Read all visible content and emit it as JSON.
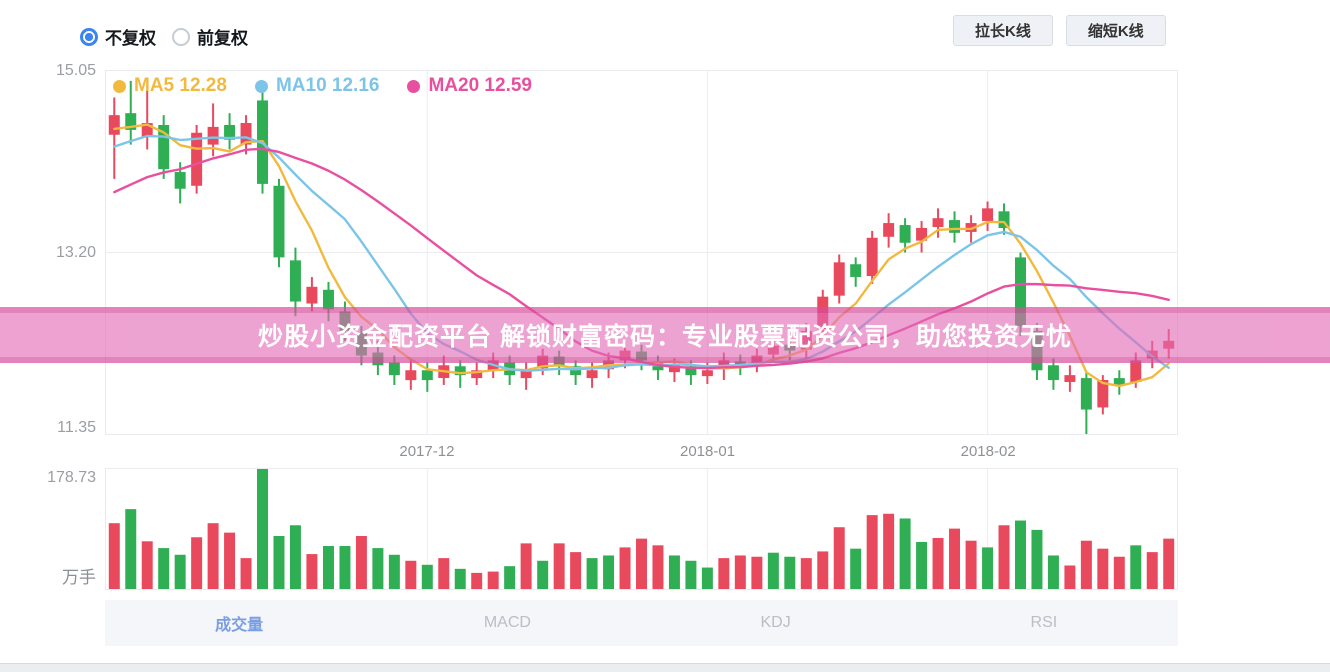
{
  "header": {
    "radios": [
      {
        "label": "不复权",
        "checked": true
      },
      {
        "label": "前复权",
        "checked": false
      }
    ],
    "buttons": [
      {
        "label": "拉长K线"
      },
      {
        "label": "缩短K线"
      }
    ]
  },
  "banner": {
    "text": "炒股小资金配资平台 解锁财富密码：专业股票配资公司，助您投资无忧",
    "text_color": "#ffffff",
    "band_color": "#e26ab6"
  },
  "tabs": [
    {
      "label": "成交量",
      "active": true
    },
    {
      "label": "MACD",
      "active": false
    },
    {
      "label": "KDJ",
      "active": false
    },
    {
      "label": "RSI",
      "active": false
    }
  ],
  "chart_data": {
    "type": "candlestick",
    "title": "",
    "legend": [
      {
        "label": "MA5 12.28",
        "color": "#f2b93f"
      },
      {
        "label": "MA10 12.16",
        "color": "#7cc5e8"
      },
      {
        "label": "MA20 12.59",
        "color": "#e8509f"
      }
    ],
    "y_axis": {
      "labels": [
        "15.05",
        "13.20",
        "11.35"
      ],
      "values": [
        15.05,
        13.2,
        11.35
      ],
      "min": 11.35,
      "max": 15.05
    },
    "x_axis": {
      "labels": [
        "2017-12",
        "2018-01",
        "2018-02"
      ],
      "tick_indices": [
        19,
        36,
        53
      ]
    },
    "volume_axis": {
      "max": 178.73,
      "max_label": "178.73",
      "unit_label": "万手"
    },
    "colors": {
      "up": "#e9495d",
      "down": "#2fae54",
      "ma5": "#f2b93f",
      "ma10": "#7cc5e8",
      "ma20": "#e8509f",
      "grid": "#ececf0"
    },
    "candles": [
      [
        14.4,
        14.78,
        13.95,
        14.6
      ],
      [
        14.62,
        14.95,
        14.3,
        14.45
      ],
      [
        14.38,
        14.85,
        14.25,
        14.52
      ],
      [
        14.5,
        14.6,
        13.95,
        14.05
      ],
      [
        14.02,
        14.12,
        13.7,
        13.85
      ],
      [
        13.88,
        14.5,
        13.8,
        14.42
      ],
      [
        14.3,
        14.72,
        14.18,
        14.48
      ],
      [
        14.5,
        14.62,
        14.25,
        14.35
      ],
      [
        14.3,
        14.6,
        14.2,
        14.52
      ],
      [
        14.75,
        14.92,
        13.8,
        13.9
      ],
      [
        13.88,
        13.95,
        13.05,
        13.15
      ],
      [
        13.12,
        13.25,
        12.55,
        12.7
      ],
      [
        12.68,
        12.95,
        12.6,
        12.85
      ],
      [
        12.82,
        12.9,
        12.5,
        12.62
      ],
      [
        12.6,
        12.7,
        12.3,
        12.4
      ],
      [
        12.38,
        12.45,
        12.05,
        12.15
      ],
      [
        12.18,
        12.3,
        11.95,
        12.05
      ],
      [
        12.08,
        12.15,
        11.85,
        11.95
      ],
      [
        11.9,
        12.1,
        11.8,
        12.0
      ],
      [
        12.0,
        12.08,
        11.78,
        11.9
      ],
      [
        11.92,
        12.15,
        11.85,
        12.05
      ],
      [
        12.04,
        12.1,
        11.82,
        11.95
      ],
      [
        11.92,
        12.08,
        11.85,
        12.0
      ],
      [
        12.0,
        12.18,
        11.92,
        12.1
      ],
      [
        12.08,
        12.15,
        11.85,
        11.95
      ],
      [
        11.92,
        12.08,
        11.8,
        12.0
      ],
      [
        12.02,
        12.22,
        11.95,
        12.15
      ],
      [
        12.14,
        12.2,
        11.95,
        12.05
      ],
      [
        12.04,
        12.1,
        11.85,
        11.95
      ],
      [
        11.92,
        12.08,
        11.82,
        12.0
      ],
      [
        12.01,
        12.18,
        11.92,
        12.1
      ],
      [
        12.1,
        12.3,
        12.02,
        12.2
      ],
      [
        12.19,
        12.26,
        12.0,
        12.1
      ],
      [
        12.09,
        12.15,
        11.9,
        12.0
      ],
      [
        11.98,
        12.12,
        11.88,
        12.05
      ],
      [
        12.04,
        12.1,
        11.85,
        11.95
      ],
      [
        11.94,
        12.08,
        11.86,
        12.0
      ],
      [
        12.01,
        12.18,
        11.9,
        12.1
      ],
      [
        12.09,
        12.16,
        11.95,
        12.05
      ],
      [
        12.06,
        12.22,
        11.98,
        12.15
      ],
      [
        12.16,
        12.32,
        12.08,
        12.25
      ],
      [
        12.26,
        12.34,
        12.1,
        12.2
      ],
      [
        12.21,
        12.48,
        12.12,
        12.4
      ],
      [
        12.42,
        12.82,
        12.35,
        12.75
      ],
      [
        12.76,
        13.18,
        12.68,
        13.1
      ],
      [
        13.08,
        13.15,
        12.85,
        12.95
      ],
      [
        12.96,
        13.42,
        12.88,
        13.35
      ],
      [
        13.36,
        13.6,
        13.25,
        13.5
      ],
      [
        13.48,
        13.55,
        13.2,
        13.3
      ],
      [
        13.32,
        13.52,
        13.2,
        13.45
      ],
      [
        13.46,
        13.65,
        13.35,
        13.55
      ],
      [
        13.53,
        13.62,
        13.3,
        13.4
      ],
      [
        13.41,
        13.58,
        13.3,
        13.5
      ],
      [
        13.52,
        13.72,
        13.42,
        13.65
      ],
      [
        13.62,
        13.7,
        13.38,
        13.45
      ],
      [
        13.15,
        13.2,
        12.35,
        12.45
      ],
      [
        12.4,
        12.48,
        11.9,
        12.0
      ],
      [
        12.05,
        12.12,
        11.8,
        11.9
      ],
      [
        11.88,
        12.05,
        11.78,
        11.95
      ],
      [
        11.92,
        11.98,
        11.35,
        11.6
      ],
      [
        11.62,
        11.95,
        11.55,
        11.9
      ],
      [
        11.92,
        12.0,
        11.75,
        11.85
      ],
      [
        11.88,
        12.18,
        11.82,
        12.1
      ],
      [
        12.12,
        12.3,
        12.02,
        12.2
      ],
      [
        12.22,
        12.42,
        12.12,
        12.3
      ]
    ],
    "volumes": [
      [
        98,
        "r"
      ],
      [
        119,
        "g"
      ],
      [
        71,
        "r"
      ],
      [
        61,
        "g"
      ],
      [
        51,
        "g"
      ],
      [
        77,
        "r"
      ],
      [
        98,
        "r"
      ],
      [
        84,
        "r"
      ],
      [
        46,
        "r"
      ],
      [
        178.73,
        "g"
      ],
      [
        79,
        "g"
      ],
      [
        95,
        "g"
      ],
      [
        52,
        "r"
      ],
      [
        64,
        "g"
      ],
      [
        64,
        "g"
      ],
      [
        79,
        "r"
      ],
      [
        61,
        "g"
      ],
      [
        51,
        "g"
      ],
      [
        42,
        "r"
      ],
      [
        36,
        "g"
      ],
      [
        46,
        "r"
      ],
      [
        30,
        "g"
      ],
      [
        24,
        "r"
      ],
      [
        26,
        "r"
      ],
      [
        34,
        "g"
      ],
      [
        68,
        "r"
      ],
      [
        42,
        "g"
      ],
      [
        68,
        "r"
      ],
      [
        55,
        "r"
      ],
      [
        46,
        "g"
      ],
      [
        50,
        "g"
      ],
      [
        62,
        "r"
      ],
      [
        75,
        "r"
      ],
      [
        65,
        "r"
      ],
      [
        50,
        "g"
      ],
      [
        42,
        "g"
      ],
      [
        32,
        "g"
      ],
      [
        46,
        "r"
      ],
      [
        50,
        "r"
      ],
      [
        48,
        "r"
      ],
      [
        54,
        "g"
      ],
      [
        48,
        "g"
      ],
      [
        46,
        "r"
      ],
      [
        56,
        "r"
      ],
      [
        92,
        "r"
      ],
      [
        60,
        "g"
      ],
      [
        110,
        "r"
      ],
      [
        112,
        "r"
      ],
      [
        105,
        "g"
      ],
      [
        70,
        "g"
      ],
      [
        76,
        "r"
      ],
      [
        90,
        "r"
      ],
      [
        72,
        "r"
      ],
      [
        62,
        "g"
      ],
      [
        95,
        "r"
      ],
      [
        102,
        "g"
      ],
      [
        88,
        "g"
      ],
      [
        50,
        "g"
      ],
      [
        35,
        "r"
      ],
      [
        72,
        "r"
      ],
      [
        60,
        "r"
      ],
      [
        48,
        "r"
      ],
      [
        65,
        "g"
      ],
      [
        55,
        "r"
      ],
      [
        75,
        "r"
      ]
    ],
    "ma_seed": [
      12.8,
      12.9,
      13.0,
      13.1,
      13.2,
      13.3,
      13.4,
      13.5,
      13.6,
      13.7,
      13.8,
      13.9,
      14.0,
      14.1,
      14.2,
      14.3,
      14.35,
      14.4,
      14.45,
      14.5
    ]
  }
}
